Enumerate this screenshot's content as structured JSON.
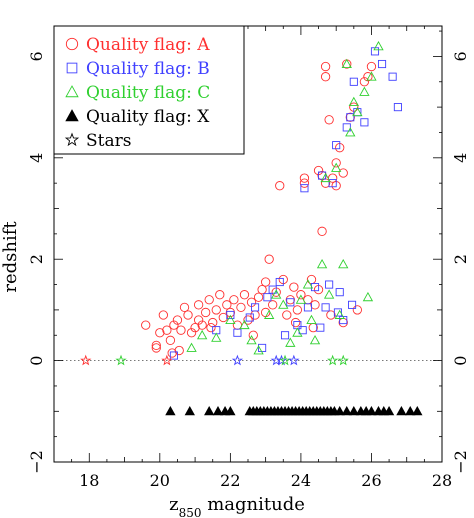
{
  "chart_data": {
    "type": "scatter",
    "title": "",
    "xlabel": "z850 magnitude",
    "xlabel_main": "z",
    "xlabel_sub": "850",
    "xlabel_rest": " magnitude",
    "ylabel": "redshift",
    "xlim": [
      17,
      28
    ],
    "ylim": [
      -2,
      6.6
    ],
    "xticks": [
      18,
      20,
      22,
      24,
      26,
      28
    ],
    "yticks": [
      -2,
      0,
      2,
      4,
      6
    ],
    "grid": false,
    "right_axis_labels": true,
    "reference_line": {
      "y": 0,
      "style": "dotted"
    },
    "legend": {
      "position": "top-left",
      "entries": [
        {
          "label": "Quality flag: A",
          "marker": "circle",
          "color": "#ff3030"
        },
        {
          "label": "Quality flag: B",
          "marker": "square",
          "color": "#4040ff"
        },
        {
          "label": "Quality flag: C",
          "marker": "triangle-open",
          "color": "#30d030"
        },
        {
          "label": "Quality flag: X",
          "marker": "triangle-filled",
          "color": "#000000"
        },
        {
          "label": "Stars",
          "marker": "star",
          "color": "#000000"
        }
      ]
    },
    "series": [
      {
        "name": "Quality flag: A",
        "marker": "circle",
        "color": "#ff3030",
        "points": [
          [
            19.6,
            0.7
          ],
          [
            19.9,
            0.3
          ],
          [
            20.0,
            0.55
          ],
          [
            20.2,
            0.6
          ],
          [
            20.3,
            0.4
          ],
          [
            20.4,
            0.7
          ],
          [
            20.5,
            0.8
          ],
          [
            20.6,
            0.6
          ],
          [
            20.7,
            1.05
          ],
          [
            20.8,
            0.9
          ],
          [
            20.9,
            0.55
          ],
          [
            21.0,
            0.65
          ],
          [
            21.1,
            0.8
          ],
          [
            21.1,
            1.1
          ],
          [
            21.2,
            0.7
          ],
          [
            21.3,
            0.95
          ],
          [
            21.4,
            1.2
          ],
          [
            21.5,
            0.75
          ],
          [
            21.6,
            1.0
          ],
          [
            21.7,
            1.3
          ],
          [
            21.8,
            0.85
          ],
          [
            21.9,
            1.1
          ],
          [
            22.0,
            0.95
          ],
          [
            22.1,
            1.2
          ],
          [
            22.2,
            0.7
          ],
          [
            22.3,
            1.05
          ],
          [
            22.4,
            1.3
          ],
          [
            22.5,
            0.8
          ],
          [
            22.6,
            1.15
          ],
          [
            22.7,
            0.9
          ],
          [
            22.8,
            1.25
          ],
          [
            22.9,
            1.4
          ],
          [
            23.0,
            0.95
          ],
          [
            23.0,
            1.55
          ],
          [
            23.1,
            2.0
          ],
          [
            23.2,
            1.1
          ],
          [
            23.3,
            1.35
          ],
          [
            23.4,
            3.45
          ],
          [
            23.5,
            1.6
          ],
          [
            23.6,
            0.9
          ],
          [
            23.7,
            1.2
          ],
          [
            23.8,
            1.45
          ],
          [
            23.9,
            1.0
          ],
          [
            24.0,
            1.3
          ],
          [
            24.1,
            3.6
          ],
          [
            24.1,
            3.5
          ],
          [
            24.2,
            1.2
          ],
          [
            24.3,
            1.6
          ],
          [
            24.4,
            1.1
          ],
          [
            24.5,
            3.75
          ],
          [
            24.5,
            1.4
          ],
          [
            24.6,
            2.55
          ],
          [
            24.6,
            3.65
          ],
          [
            24.7,
            3.5
          ],
          [
            24.8,
            4.75
          ],
          [
            24.9,
            3.6
          ],
          [
            25.0,
            3.45
          ],
          [
            25.0,
            3.9
          ],
          [
            25.1,
            4.2
          ],
          [
            25.2,
            3.7
          ],
          [
            24.7,
            5.6
          ],
          [
            24.7,
            5.8
          ],
          [
            25.3,
            5.85
          ],
          [
            25.4,
            4.8
          ],
          [
            25.5,
            5.0
          ],
          [
            25.8,
            5.5
          ],
          [
            25.9,
            5.6
          ],
          [
            26.0,
            5.8
          ],
          [
            25.2,
            0.75
          ],
          [
            25.6,
            1.0
          ],
          [
            19.9,
            0.25
          ],
          [
            20.1,
            0.9
          ],
          [
            20.35,
            0.15
          ],
          [
            20.55,
            0.2
          ],
          [
            21.45,
            0.65
          ],
          [
            22.65,
            0.5
          ],
          [
            23.85,
            0.75
          ],
          [
            24.35,
            0.65
          ],
          [
            24.85,
            0.9
          ]
        ]
      },
      {
        "name": "Quality flag: B",
        "marker": "square",
        "color": "#4040ff",
        "points": [
          [
            20.4,
            0.1
          ],
          [
            21.6,
            0.6
          ],
          [
            22.0,
            0.9
          ],
          [
            22.7,
            1.05
          ],
          [
            22.9,
            0.25
          ],
          [
            23.2,
            1.4
          ],
          [
            23.4,
            1.55
          ],
          [
            23.7,
            1.15
          ],
          [
            23.9,
            0.7
          ],
          [
            24.1,
            3.4
          ],
          [
            24.2,
            1.05
          ],
          [
            24.4,
            1.45
          ],
          [
            24.6,
            3.65
          ],
          [
            24.7,
            1.05
          ],
          [
            24.8,
            1.5
          ],
          [
            24.9,
            3.5
          ],
          [
            25.0,
            4.25
          ],
          [
            25.1,
            1.35
          ],
          [
            25.2,
            0.8
          ],
          [
            25.3,
            4.6
          ],
          [
            25.4,
            4.8
          ],
          [
            25.6,
            4.9
          ],
          [
            25.8,
            4.7
          ],
          [
            26.1,
            6.1
          ],
          [
            26.3,
            5.85
          ],
          [
            26.6,
            5.6
          ],
          [
            26.75,
            5.0
          ],
          [
            22.2,
            0.55
          ],
          [
            22.55,
            0.85
          ],
          [
            23.05,
            1.25
          ],
          [
            23.55,
            0.5
          ],
          [
            24.05,
            0.6
          ],
          [
            24.55,
            0.65
          ],
          [
            25.05,
            0.95
          ],
          [
            25.45,
            1.1
          ],
          [
            25.5,
            5.5
          ]
        ]
      },
      {
        "name": "Quality flag: C",
        "marker": "triangle-open",
        "color": "#30d030",
        "points": [
          [
            20.9,
            0.25
          ],
          [
            21.2,
            0.5
          ],
          [
            22.0,
            0.8
          ],
          [
            22.4,
            0.7
          ],
          [
            22.8,
            0.2
          ],
          [
            23.3,
            1.3
          ],
          [
            23.5,
            1.1
          ],
          [
            23.7,
            0.35
          ],
          [
            24.0,
            1.2
          ],
          [
            24.2,
            1.5
          ],
          [
            24.4,
            0.4
          ],
          [
            24.6,
            1.9
          ],
          [
            24.8,
            1.3
          ],
          [
            25.0,
            3.8
          ],
          [
            25.2,
            1.9
          ],
          [
            25.3,
            5.85
          ],
          [
            25.5,
            5.1
          ],
          [
            25.6,
            4.9
          ],
          [
            25.8,
            5.3
          ],
          [
            26.0,
            5.6
          ],
          [
            26.2,
            6.2
          ],
          [
            25.1,
            0.9
          ],
          [
            25.9,
            1.25
          ],
          [
            23.1,
            0.9
          ],
          [
            23.9,
            0.55
          ],
          [
            24.3,
            0.8
          ],
          [
            24.7,
            3.6
          ],
          [
            25.4,
            4.5
          ],
          [
            22.6,
            0.4
          ],
          [
            21.6,
            0.45
          ]
        ]
      },
      {
        "name": "Quality flag: X",
        "marker": "triangle-filled",
        "color": "#000000",
        "points": [
          [
            20.3,
            -1.0
          ],
          [
            20.85,
            -1.0
          ],
          [
            21.4,
            -1.0
          ],
          [
            21.65,
            -1.0
          ],
          [
            21.85,
            -1.0
          ],
          [
            22.0,
            -1.0
          ],
          [
            22.55,
            -1.0
          ],
          [
            22.65,
            -1.0
          ],
          [
            22.75,
            -1.0
          ],
          [
            22.85,
            -1.0
          ],
          [
            22.95,
            -1.0
          ],
          [
            23.05,
            -1.0
          ],
          [
            23.15,
            -1.0
          ],
          [
            23.25,
            -1.0
          ],
          [
            23.35,
            -1.0
          ],
          [
            23.45,
            -1.0
          ],
          [
            23.55,
            -1.0
          ],
          [
            23.65,
            -1.0
          ],
          [
            23.75,
            -1.0
          ],
          [
            23.85,
            -1.0
          ],
          [
            23.95,
            -1.0
          ],
          [
            24.05,
            -1.0
          ],
          [
            24.15,
            -1.0
          ],
          [
            24.25,
            -1.0
          ],
          [
            24.35,
            -1.0
          ],
          [
            24.45,
            -1.0
          ],
          [
            24.55,
            -1.0
          ],
          [
            24.65,
            -1.0
          ],
          [
            24.75,
            -1.0
          ],
          [
            24.85,
            -1.0
          ],
          [
            24.95,
            -1.0
          ],
          [
            25.1,
            -1.0
          ],
          [
            25.3,
            -1.0
          ],
          [
            25.5,
            -1.0
          ],
          [
            25.7,
            -1.0
          ],
          [
            25.85,
            -1.0
          ],
          [
            26.0,
            -1.0
          ],
          [
            26.2,
            -1.0
          ],
          [
            26.35,
            -1.0
          ],
          [
            26.5,
            -1.0
          ],
          [
            26.85,
            -1.0
          ],
          [
            27.1,
            -1.0
          ],
          [
            27.3,
            -1.0
          ]
        ]
      },
      {
        "name": "Stars",
        "marker": "star",
        "color": "#000000",
        "points": [
          {
            "x": 17.9,
            "y": 0.0,
            "color": "#ff3030"
          },
          {
            "x": 18.9,
            "y": 0.0,
            "color": "#30d030"
          },
          {
            "x": 20.2,
            "y": 0.0,
            "color": "#ff3030"
          },
          {
            "x": 22.2,
            "y": 0.0,
            "color": "#4040ff"
          },
          {
            "x": 23.3,
            "y": 0.0,
            "color": "#4040ff"
          },
          {
            "x": 23.45,
            "y": 0.0,
            "color": "#4040ff"
          },
          {
            "x": 23.55,
            "y": 0.0,
            "color": "#30d030"
          },
          {
            "x": 23.8,
            "y": 0.0,
            "color": "#4040ff"
          },
          {
            "x": 24.9,
            "y": 0.0,
            "color": "#30d030"
          },
          {
            "x": 25.2,
            "y": 0.0,
            "color": "#30d030"
          }
        ]
      }
    ]
  }
}
